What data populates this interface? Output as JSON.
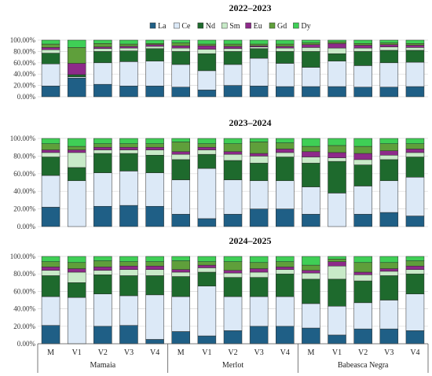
{
  "legend": [
    {
      "label": "La",
      "color": "#1f5f86"
    },
    {
      "label": "Ce",
      "color": "#dce9f7"
    },
    {
      "label": "Nd",
      "color": "#1e6a2d"
    },
    {
      "label": "Sm",
      "color": "#c8eac8"
    },
    {
      "label": "Eu",
      "color": "#8e2a8a"
    },
    {
      "label": "Gd",
      "color": "#5f9f3b"
    },
    {
      "label": "Dy",
      "color": "#3fcf56"
    }
  ],
  "y_ticks": [
    "0.00%",
    "20.00%",
    "40.00%",
    "60.00%",
    "80.00%",
    "100.00%"
  ],
  "x_categories": [
    "M",
    "V1",
    "V2",
    "V3",
    "V4",
    "M",
    "V1",
    "V2",
    "V3",
    "V4",
    "M",
    "V1",
    "V2",
    "V3",
    "V4"
  ],
  "groups": [
    "Mamaia",
    "Merlot",
    "Babeasca Negra"
  ],
  "chart_data": [
    {
      "type": "bar",
      "stacked": true,
      "title": "2022–2023",
      "categories": [
        "M",
        "V1",
        "V2",
        "V3",
        "V4",
        "M",
        "V1",
        "V2",
        "V3",
        "V4",
        "M",
        "V1",
        "V2",
        "V3",
        "V4"
      ],
      "groups": [
        "Mamaia",
        "Merlot",
        "Babeasca Negra"
      ],
      "ylim": [
        0,
        100
      ],
      "series": [
        {
          "name": "La",
          "values": [
            19,
            33,
            22,
            19,
            19,
            17,
            12,
            20,
            19,
            18,
            18,
            18,
            17,
            17,
            18
          ]
        },
        {
          "name": "Ce",
          "values": [
            39,
            2,
            38,
            43,
            44,
            40,
            34,
            37,
            49,
            41,
            34,
            45,
            38,
            43,
            43
          ]
        },
        {
          "name": "Nd",
          "values": [
            19,
            4,
            20,
            19,
            22,
            23,
            30,
            23,
            17,
            21,
            28,
            13,
            25,
            22,
            21
          ]
        },
        {
          "name": "Sm",
          "values": [
            6,
            0,
            5,
            5,
            4,
            6,
            8,
            5,
            3,
            6,
            7,
            10,
            6,
            6,
            5
          ]
        },
        {
          "name": "Eu",
          "values": [
            4,
            20,
            3,
            3,
            3,
            4,
            6,
            4,
            2,
            3,
            5,
            8,
            5,
            4,
            4
          ]
        },
        {
          "name": "Gd",
          "values": [
            6,
            28,
            6,
            4,
            2,
            5,
            3,
            4,
            3,
            4,
            3,
            3,
            3,
            3,
            3
          ]
        },
        {
          "name": "Dy",
          "values": [
            7,
            13,
            6,
            7,
            6,
            5,
            7,
            7,
            7,
            7,
            5,
            3,
            6,
            5,
            6
          ]
        }
      ]
    },
    {
      "type": "bar",
      "stacked": true,
      "title": "2023–2024",
      "categories": [
        "M",
        "V1",
        "V2",
        "V3",
        "V4",
        "M",
        "V1",
        "V2",
        "V3",
        "V4",
        "M",
        "V1",
        "V2",
        "V3",
        "V4"
      ],
      "groups": [
        "Mamaia",
        "Merlot",
        "Babeasca Negra"
      ],
      "ylim": [
        0,
        100
      ],
      "series": [
        {
          "name": "La",
          "values": [
            22,
            0,
            23,
            24,
            23,
            14,
            9,
            14,
            20,
            20,
            14,
            0,
            14,
            16,
            12
          ]
        },
        {
          "name": "Ce",
          "values": [
            36,
            52,
            38,
            39,
            38,
            39,
            57,
            39,
            32,
            32,
            31,
            38,
            32,
            36,
            44
          ]
        },
        {
          "name": "Nd",
          "values": [
            21,
            15,
            22,
            20,
            20,
            23,
            16,
            22,
            20,
            27,
            27,
            36,
            24,
            24,
            23
          ]
        },
        {
          "name": "Sm",
          "values": [
            5,
            17,
            4,
            4,
            6,
            6,
            5,
            7,
            8,
            5,
            7,
            4,
            6,
            5,
            5
          ]
        },
        {
          "name": "Eu",
          "values": [
            3,
            3,
            3,
            3,
            3,
            3,
            3,
            3,
            3,
            4,
            6,
            6,
            7,
            5,
            4
          ]
        },
        {
          "name": "Gd",
          "values": [
            7,
            4,
            4,
            4,
            4,
            11,
            4,
            9,
            13,
            7,
            6,
            8,
            8,
            8,
            6
          ]
        },
        {
          "name": "Dy",
          "values": [
            6,
            9,
            6,
            6,
            6,
            4,
            6,
            6,
            4,
            5,
            9,
            8,
            9,
            6,
            6
          ]
        }
      ]
    },
    {
      "type": "bar",
      "stacked": true,
      "title": "2024–2025",
      "categories": [
        "M",
        "V1",
        "V2",
        "V3",
        "V4",
        "M",
        "V1",
        "V2",
        "V3",
        "V4",
        "M",
        "V1",
        "V2",
        "V3",
        "V4"
      ],
      "groups": [
        "Mamaia",
        "Merlot",
        "Babeasca Negra"
      ],
      "ylim": [
        0,
        100
      ],
      "series": [
        {
          "name": "La",
          "values": [
            21,
            0,
            20,
            21,
            5,
            14,
            9,
            15,
            20,
            20,
            18,
            10,
            17,
            17,
            15
          ]
        },
        {
          "name": "Ce",
          "values": [
            33,
            53,
            37,
            34,
            51,
            40,
            57,
            39,
            34,
            34,
            28,
            33,
            30,
            33,
            42
          ]
        },
        {
          "name": "Nd",
          "values": [
            24,
            17,
            22,
            23,
            22,
            23,
            16,
            22,
            22,
            26,
            28,
            31,
            25,
            28,
            23
          ]
        },
        {
          "name": "Sm",
          "values": [
            6,
            12,
            5,
            7,
            7,
            5,
            5,
            5,
            6,
            5,
            7,
            15,
            7,
            5,
            5
          ]
        },
        {
          "name": "Eu",
          "values": [
            4,
            4,
            4,
            4,
            4,
            3,
            3,
            3,
            4,
            3,
            3,
            5,
            3,
            3,
            4
          ]
        },
        {
          "name": "Gd",
          "values": [
            6,
            7,
            7,
            5,
            5,
            10,
            4,
            10,
            7,
            6,
            6,
            3,
            11,
            7,
            6
          ]
        },
        {
          "name": "Dy",
          "values": [
            6,
            7,
            5,
            6,
            6,
            5,
            6,
            6,
            7,
            6,
            10,
            3,
            7,
            7,
            5
          ]
        }
      ]
    }
  ]
}
